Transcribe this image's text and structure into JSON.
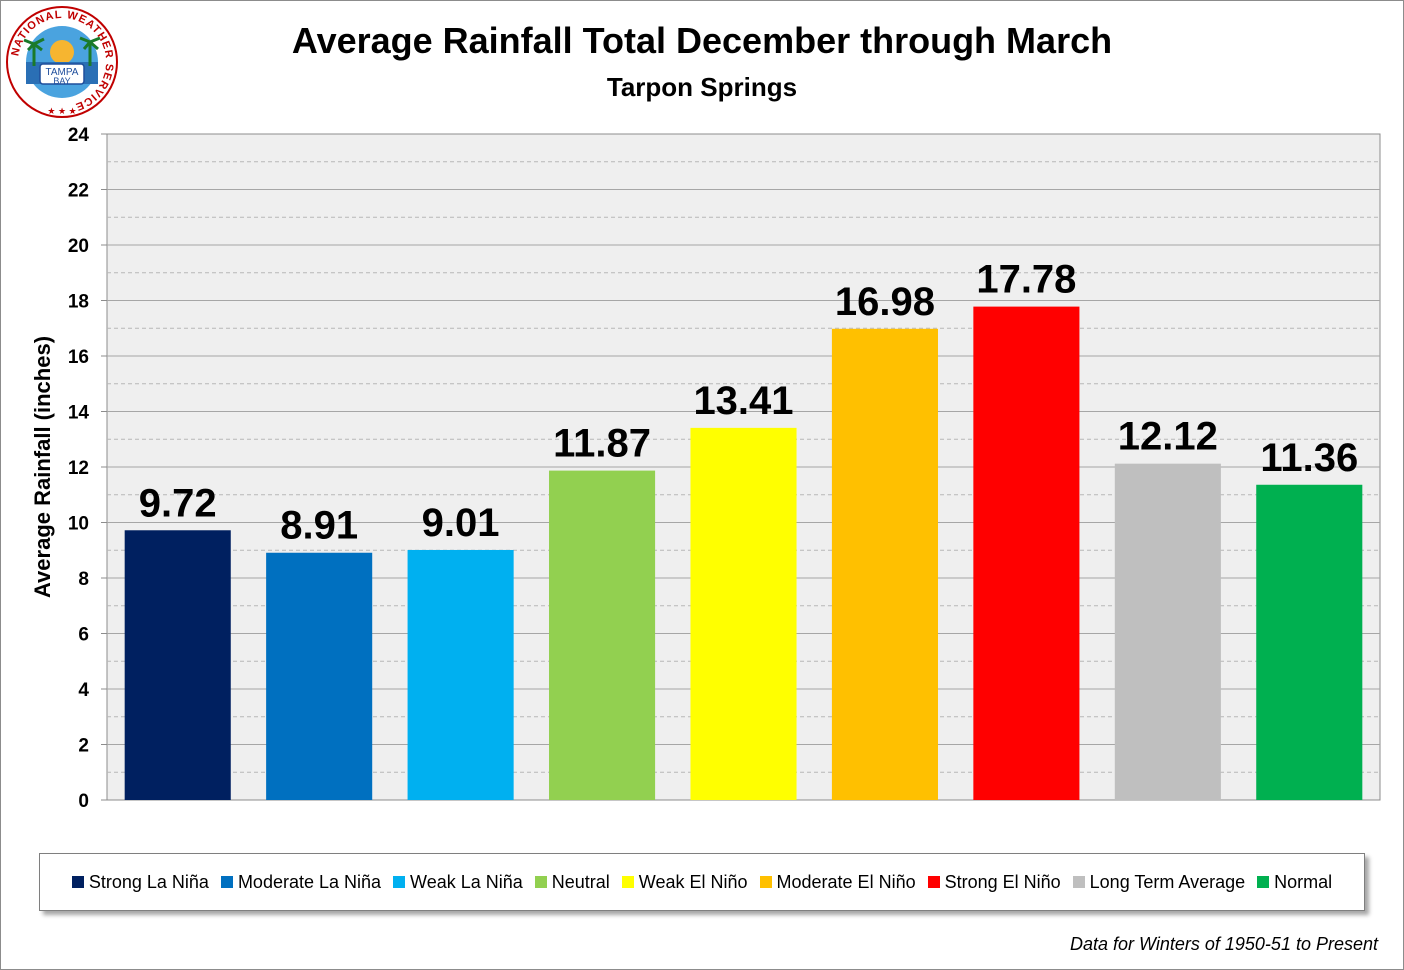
{
  "chart_data": {
    "type": "bar",
    "title": "Average Rainfall Total December through March",
    "subtitle": "Tarpon Springs",
    "ylabel": "Average Rainfall (inches)",
    "xlabel": "",
    "ylim": [
      0,
      24
    ],
    "yticks": [
      "0",
      "2",
      "4",
      "6",
      "8",
      "10",
      "12",
      "14",
      "16",
      "18",
      "20",
      "22",
      "24"
    ],
    "grid": true,
    "legend_position": "bottom",
    "categories": [
      "Strong La Niña",
      "Moderate La Niña",
      "Weak La Niña",
      "Neutral",
      "Weak El Niño",
      "Moderate El Niño",
      "Strong El Niño",
      "Long Term Average",
      "Normal"
    ],
    "values": [
      9.72,
      8.91,
      9.01,
      11.87,
      13.41,
      16.98,
      17.78,
      12.12,
      11.36
    ],
    "value_labels": [
      "9.72",
      "8.91",
      "9.01",
      "11.87",
      "13.41",
      "16.98",
      "17.78",
      "12.12",
      "11.36"
    ],
    "colors": [
      "#002060",
      "#0070c0",
      "#00b0f0",
      "#92d050",
      "#ffff00",
      "#ffc000",
      "#ff0000",
      "#bfbfbf",
      "#00b050"
    ],
    "plot_background": "#efefef",
    "footnote": "Data for Winters of 1950-51 to Present"
  },
  "logo": {
    "top_text": "NATIONAL WEATHER SERVICE",
    "center_line1": "TAMPA",
    "center_line2": "BAY"
  }
}
